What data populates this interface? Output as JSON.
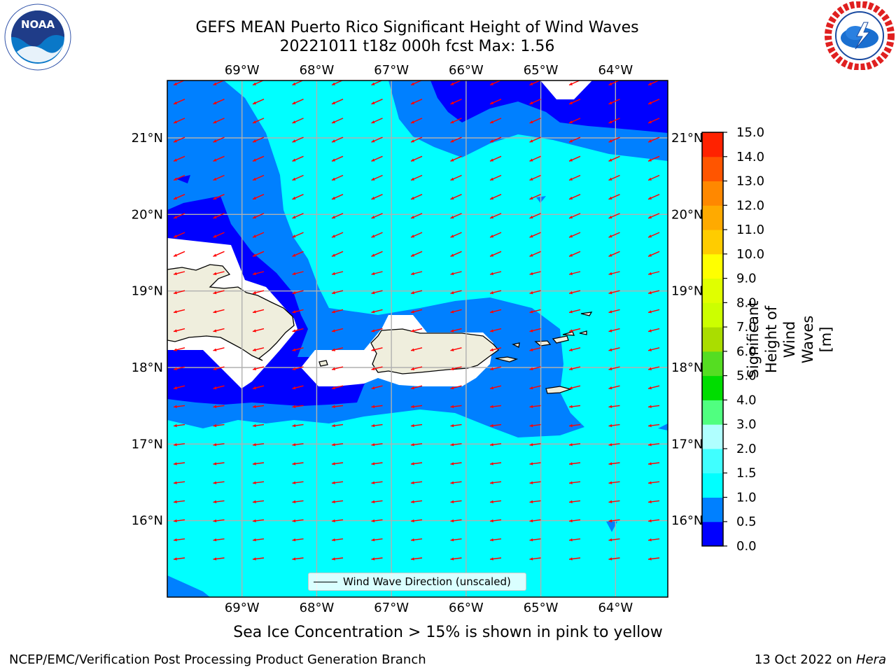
{
  "header": {
    "title_line1": "GEFS MEAN Puerto Rico Significant Height of Wind Waves",
    "title_line2": "20221011 t18z 000h fcst   Max: 1.56"
  },
  "logos": {
    "noaa": {
      "icon": "noaa-logo-icon",
      "text": "NOAA"
    },
    "nws": {
      "icon": "nws-logo-icon"
    }
  },
  "map": {
    "lon_ticks": [
      "69°W",
      "68°W",
      "67°W",
      "66°W",
      "65°W",
      "64°W"
    ],
    "lat_ticks": [
      "21°N",
      "20°N",
      "19°N",
      "18°N",
      "17°N",
      "16°N"
    ],
    "lon_values": [
      -69,
      -68,
      -67,
      -66,
      -65,
      -64
    ],
    "lat_values": [
      21,
      20,
      19,
      18,
      17,
      16
    ],
    "extent": {
      "lon_min": -70,
      "lon_max": -63.3,
      "lat_min": 15,
      "lat_max": 21.75
    },
    "land_color": "#efeedd",
    "arrow_color": "#ff0000",
    "grid": true,
    "legend": {
      "label": "Wind Wave Direction (unscaled)",
      "placement": "lower-center"
    }
  },
  "colorbar": {
    "title": "Significant Height of Wind Waves [m]",
    "levels": [
      0.0,
      0.5,
      1.0,
      1.5,
      2.0,
      3.0,
      4.0,
      5.0,
      6.0,
      7.0,
      8.0,
      9.0,
      10.0,
      11.0,
      12.0,
      13.0,
      14.0,
      15.0
    ],
    "labels": [
      "0.0",
      "0.5",
      "1.0",
      "1.5",
      "2.0",
      "3.0",
      "4.0",
      "5.0",
      "6.0",
      "7.0",
      "8.0",
      "9.0",
      "10.0",
      "11.0",
      "12.0",
      "13.0",
      "14.0",
      "15.0"
    ],
    "colors": [
      "#0000ff",
      "#0080ff",
      "#00ffff",
      "#40ffff",
      "#b0ffff",
      "#50ff80",
      "#00dd00",
      "#55dd22",
      "#aadd00",
      "#ccff00",
      "#e0ff00",
      "#ffff00",
      "#ffcc00",
      "#ffaa00",
      "#ff8800",
      "#ff5500",
      "#ff2200"
    ]
  },
  "footer": {
    "note": "Sea Ice Concentration > 15% is shown in pink to yellow",
    "left": "NCEP/EMC/Verification Post Processing Product Generation Branch",
    "right_prefix": "13 Oct 2022 on ",
    "right_host": "Hera"
  }
}
